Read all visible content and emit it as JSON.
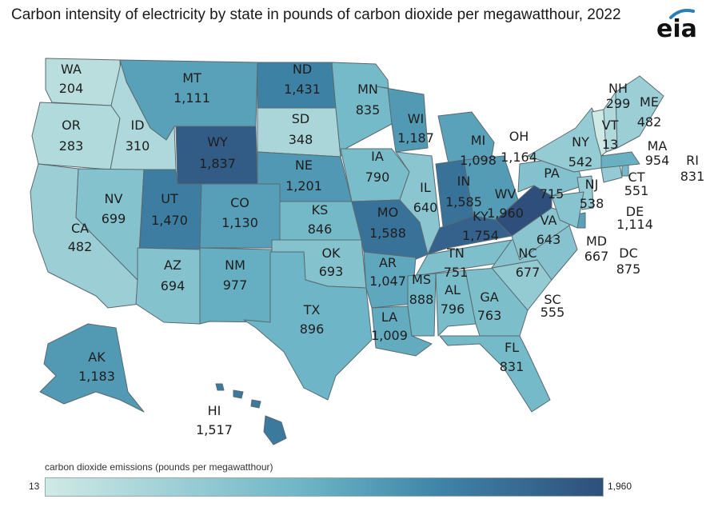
{
  "title": "Carbon intensity of electricity by state in pounds of carbon dioxide per megawatthour, 2022",
  "logo_text": "eia",
  "legend": {
    "title": "carbon dioxide emissions (pounds per megawatthour)",
    "min_label": "13",
    "max_label": "1,960",
    "min": 13,
    "max": 1960
  },
  "colors": {
    "low": "#cfe9e5",
    "mid": "#5fb0c5",
    "high": "#2e4f7c",
    "outline": "#5a6a70"
  },
  "states": [
    {
      "abbr": "WA",
      "value_label": "204",
      "value": 204
    },
    {
      "abbr": "OR",
      "value_label": "283",
      "value": 283
    },
    {
      "abbr": "CA",
      "value_label": "482",
      "value": 482
    },
    {
      "abbr": "ID",
      "value_label": "310",
      "value": 310
    },
    {
      "abbr": "NV",
      "value_label": "699",
      "value": 699
    },
    {
      "abbr": "MT",
      "value_label": "1,111",
      "value": 1111
    },
    {
      "abbr": "WY",
      "value_label": "1,837",
      "value": 1837
    },
    {
      "abbr": "UT",
      "value_label": "1,470",
      "value": 1470
    },
    {
      "abbr": "AZ",
      "value_label": "694",
      "value": 694
    },
    {
      "abbr": "CO",
      "value_label": "1,130",
      "value": 1130
    },
    {
      "abbr": "NM",
      "value_label": "977",
      "value": 977
    },
    {
      "abbr": "ND",
      "value_label": "1,431",
      "value": 1431
    },
    {
      "abbr": "SD",
      "value_label": "348",
      "value": 348
    },
    {
      "abbr": "NE",
      "value_label": "1,201",
      "value": 1201
    },
    {
      "abbr": "KS",
      "value_label": "846",
      "value": 846
    },
    {
      "abbr": "OK",
      "value_label": "693",
      "value": 693
    },
    {
      "abbr": "TX",
      "value_label": "896",
      "value": 896
    },
    {
      "abbr": "MN",
      "value_label": "835",
      "value": 835
    },
    {
      "abbr": "IA",
      "value_label": "790",
      "value": 790
    },
    {
      "abbr": "MO",
      "value_label": "1,588",
      "value": 1588
    },
    {
      "abbr": "AR",
      "value_label": "1,047",
      "value": 1047
    },
    {
      "abbr": "LA",
      "value_label": "1,009",
      "value": 1009
    },
    {
      "abbr": "WI",
      "value_label": "1,187",
      "value": 1187
    },
    {
      "abbr": "IL",
      "value_label": "640",
      "value": 640
    },
    {
      "abbr": "MI",
      "value_label": "1,098",
      "value": 1098
    },
    {
      "abbr": "IN",
      "value_label": "1,585",
      "value": 1585
    },
    {
      "abbr": "OH",
      "value_label": "1,164",
      "value": 1164
    },
    {
      "abbr": "KY",
      "value_label": "1,754",
      "value": 1754
    },
    {
      "abbr": "TN",
      "value_label": "751",
      "value": 751
    },
    {
      "abbr": "MS",
      "value_label": "888",
      "value": 888
    },
    {
      "abbr": "AL",
      "value_label": "796",
      "value": 796
    },
    {
      "abbr": "GA",
      "value_label": "763",
      "value": 763
    },
    {
      "abbr": "FL",
      "value_label": "831",
      "value": 831
    },
    {
      "abbr": "SC",
      "value_label": "555",
      "value": 555
    },
    {
      "abbr": "NC",
      "value_label": "677",
      "value": 677
    },
    {
      "abbr": "VA",
      "value_label": "643",
      "value": 643
    },
    {
      "abbr": "WV",
      "value_label": "1,960",
      "value": 1960
    },
    {
      "abbr": "PA",
      "value_label": "715",
      "value": 715
    },
    {
      "abbr": "NY",
      "value_label": "542",
      "value": 542
    },
    {
      "abbr": "NJ",
      "value_label": "538",
      "value": 538
    },
    {
      "abbr": "DE",
      "value_label": "1,114",
      "value": 1114
    },
    {
      "abbr": "MD",
      "value_label": "667",
      "value": 667
    },
    {
      "abbr": "DC",
      "value_label": "875",
      "value": 875
    },
    {
      "abbr": "CT",
      "value_label": "551",
      "value": 551
    },
    {
      "abbr": "RI",
      "value_label": "831",
      "value": 831
    },
    {
      "abbr": "MA",
      "value_label": "954",
      "value": 954
    },
    {
      "abbr": "VT",
      "value_label": "13",
      "value": 13
    },
    {
      "abbr": "NH",
      "value_label": "299",
      "value": 299
    },
    {
      "abbr": "ME",
      "value_label": "482",
      "value": 482
    },
    {
      "abbr": "AK",
      "value_label": "1,183",
      "value": 1183
    },
    {
      "abbr": "HI",
      "value_label": "1,517",
      "value": 1517
    }
  ]
}
